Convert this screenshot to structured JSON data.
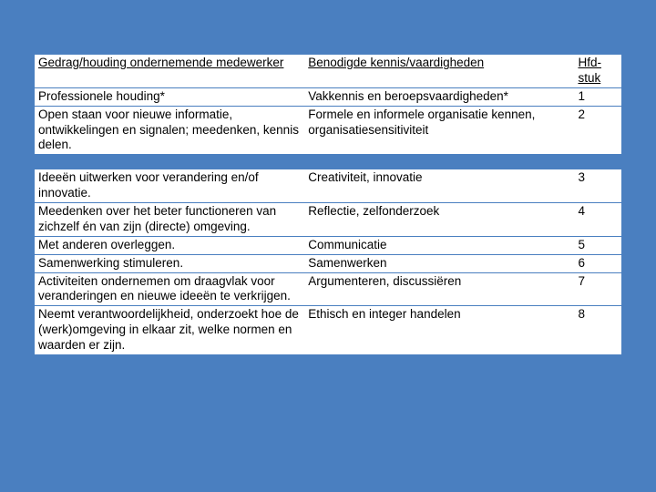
{
  "table": {
    "background_color": "#4a7fc0",
    "cell_background": "#ffffff",
    "text_color": "#000000",
    "font_family": "Arial",
    "font_size_pt": 10,
    "columns": [
      {
        "key": "gedrag",
        "label": "Gedrag/houding ondernemende medewerker",
        "width_pct": 46
      },
      {
        "key": "kennis",
        "label": "Benodigde kennis/vaardigheden",
        "width_pct": 46
      },
      {
        "key": "hfd",
        "label": "Hfd-stuk",
        "width_pct": 8
      }
    ],
    "header": {
      "col1": "Gedrag/houding ondernemende medewerker",
      "col2": "Benodigde kennis/vaardigheden",
      "col3": "Hfd-stuk"
    },
    "rows": [
      {
        "c1": "Professionele houding*",
        "c2": "Vakkennis en beroepsvaardigheden*",
        "c3": "1"
      },
      {
        "c1": "Open staan voor nieuwe informatie, ontwikkelingen en signalen; meedenken, kennis delen.",
        "c2": "Formele en informele organisatie kennen, organisatiesensitiviteit",
        "c3": "2"
      },
      {
        "gap": true
      },
      {
        "c1": "Ideeën uitwerken voor verandering en/of innovatie.",
        "c2": "Creativiteit, innovatie",
        "c3": "3"
      },
      {
        "c1": "Meedenken over het beter functioneren van zichzelf én van zijn (directe) omgeving.",
        "c2": "Reflectie, zelfonderzoek",
        "c3": "4"
      },
      {
        "c1": "Met anderen overleggen.",
        "c2": "Communicatie",
        "c3": "5"
      },
      {
        "c1": "Samenwerking stimuleren.",
        "c2": "Samenwerken",
        "c3": "6"
      },
      {
        "c1": "Activiteiten ondernemen om draagvlak voor veranderingen en nieuwe ideeën te verkrijgen.",
        "c2": "Argumenteren, discussiëren",
        "c3": "7"
      },
      {
        "c1": "Neemt verantwoordelijkheid, onderzoekt hoe de (werk)omgeving in elkaar zit, welke normen en waarden er zijn.",
        "c2": "Ethisch en integer handelen",
        "c3": "8"
      }
    ]
  }
}
